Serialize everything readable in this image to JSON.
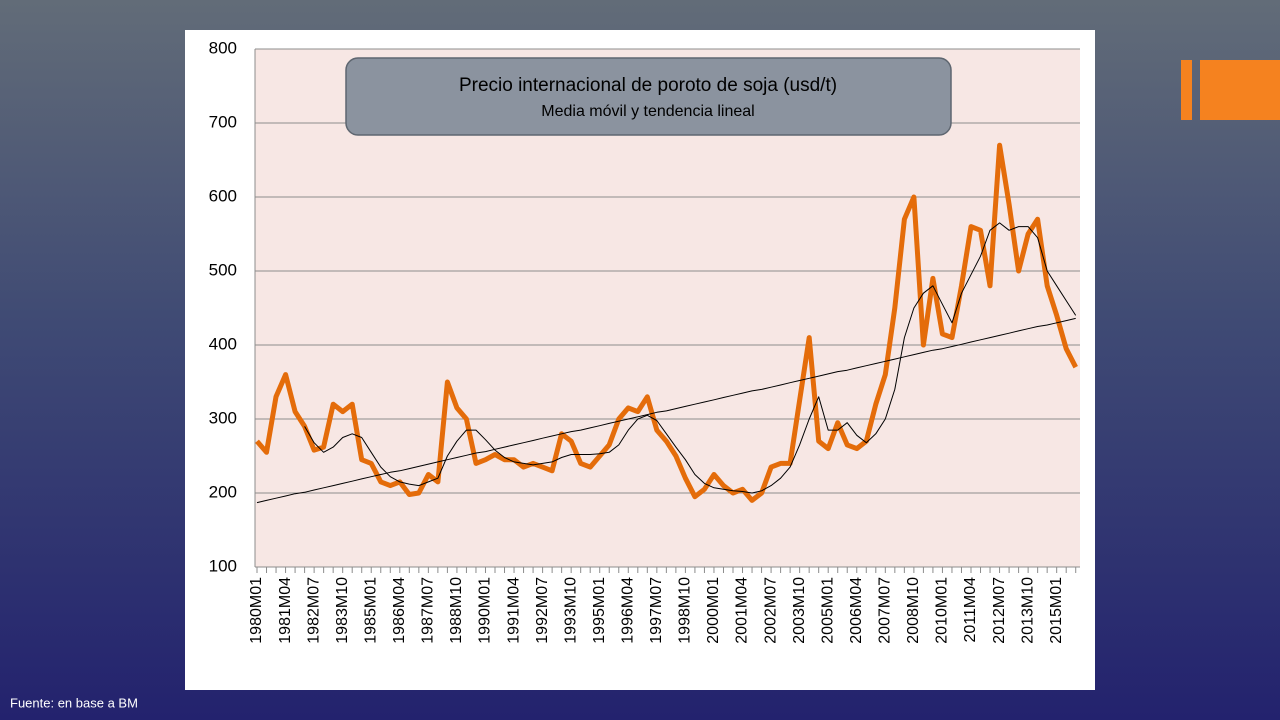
{
  "chart_data": {
    "type": "line",
    "title": "Precio internacional de poroto de soja (usd/t)",
    "subtitle": "Media móvil y tendencia lineal",
    "source": "Fuente: en base a BM",
    "categories": [
      "1980M01",
      null,
      null,
      "1981M04",
      null,
      null,
      "1982M07",
      null,
      null,
      "1983M10",
      null,
      null,
      "1985M01",
      null,
      null,
      "1986M04",
      null,
      null,
      "1987M07",
      null,
      null,
      "1988M10",
      null,
      null,
      "1990M01",
      null,
      null,
      "1991M04",
      null,
      null,
      "1992M07",
      null,
      null,
      "1993M10",
      null,
      null,
      "1995M01",
      null,
      null,
      "1996M04",
      null,
      null,
      "1997M07",
      null,
      null,
      "1998M10",
      null,
      null,
      "2000M01",
      null,
      null,
      "2001M04",
      null,
      null,
      "2002M07",
      null,
      null,
      "2003M10",
      null,
      null,
      "2005M01",
      null,
      null,
      "2006M04",
      null,
      null,
      "2007M07",
      null,
      null,
      "2008M10",
      null,
      null,
      "2010M01",
      null,
      null,
      "2011M04",
      null,
      null,
      "2012M07",
      null,
      null,
      "2013M10",
      null,
      null,
      "2015M01",
      null,
      null
    ],
    "series": [
      {
        "color": "#e46c0a",
        "line_width": 5,
        "values": [
          270,
          255,
          330,
          360,
          310,
          290,
          258,
          262,
          320,
          310,
          320,
          245,
          240,
          215,
          210,
          215,
          198,
          200,
          225,
          215,
          350,
          315,
          300,
          240,
          245,
          252,
          245,
          245,
          235,
          240,
          235,
          230,
          280,
          270,
          240,
          235,
          250,
          265,
          300,
          315,
          310,
          330,
          285,
          270,
          250,
          220,
          195,
          205,
          225,
          210,
          200,
          205,
          190,
          200,
          235,
          240,
          240,
          325,
          410,
          270,
          260,
          295,
          265,
          260,
          270,
          320,
          360,
          450,
          570,
          600,
          400,
          490,
          415,
          410,
          480,
          560,
          555,
          480,
          670,
          590,
          500,
          550,
          570,
          480,
          440,
          395,
          370
        ]
      },
      {
        "color": "#000000",
        "line_width": 1,
        "values": [
          null,
          null,
          null,
          null,
          null,
          290,
          268,
          255,
          262,
          275,
          280,
          275,
          255,
          235,
          222,
          215,
          212,
          210,
          215,
          220,
          250,
          270,
          285,
          285,
          272,
          258,
          248,
          242,
          240,
          238,
          240,
          242,
          248,
          252,
          252,
          252,
          253,
          255,
          265,
          285,
          300,
          305,
          298,
          280,
          262,
          245,
          225,
          213,
          207,
          205,
          203,
          202,
          200,
          203,
          210,
          220,
          235,
          265,
          300,
          330,
          285,
          285,
          295,
          278,
          268,
          280,
          300,
          340,
          410,
          450,
          470,
          480,
          455,
          430,
          470,
          495,
          520,
          555,
          565,
          555,
          560,
          560,
          545,
          500,
          480,
          460,
          440
        ]
      },
      {
        "color": "#000000",
        "line_width": 1,
        "values": [
          187,
          190,
          193,
          196,
          199,
          201,
          204,
          207,
          210,
          213,
          216,
          219,
          222,
          225,
          228,
          230,
          233,
          236,
          239,
          242,
          245,
          248,
          251,
          254,
          256,
          259,
          262,
          265,
          268,
          271,
          274,
          277,
          280,
          283,
          285,
          288,
          291,
          294,
          297,
          300,
          303,
          306,
          309,
          311,
          314,
          317,
          320,
          323,
          326,
          329,
          332,
          335,
          338,
          340,
          343,
          346,
          349,
          352,
          355,
          358,
          361,
          364,
          366,
          369,
          372,
          375,
          378,
          381,
          384,
          387,
          390,
          393,
          395,
          398,
          401,
          404,
          407,
          410,
          413,
          416,
          419,
          422,
          425,
          427,
          430,
          433,
          436
        ]
      }
    ],
    "ylim": [
      100,
      800
    ],
    "yticks": [
      100,
      200,
      300,
      400,
      500,
      600,
      700,
      800
    ],
    "grid": true
  }
}
